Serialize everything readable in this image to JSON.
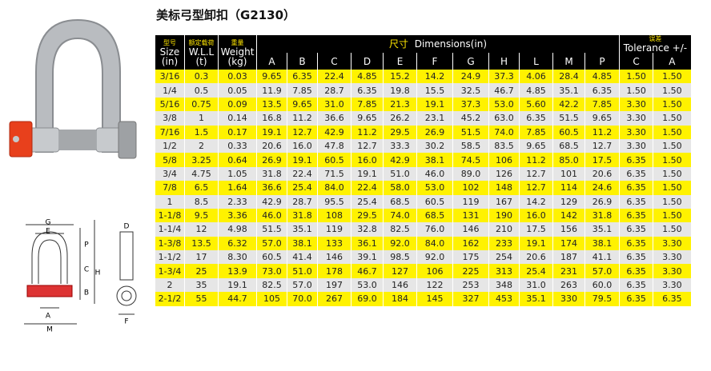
{
  "title": "美标弓型卸扣（G2130）",
  "table": {
    "headers": {
      "size": [
        "型号",
        "Size",
        "(in)"
      ],
      "wll": [
        "额定载荷",
        "W.L.L",
        "(t)"
      ],
      "weight": [
        "重量",
        "Weight",
        "(kg)"
      ],
      "dimensions": [
        "尺寸",
        "Dimensions(in)"
      ],
      "tolerance": [
        "误差",
        "Tolerance +/-"
      ]
    },
    "columns": [
      "A",
      "B",
      "C",
      "D",
      "E",
      "F",
      "G",
      "H",
      "L",
      "M",
      "P",
      "C",
      "A"
    ],
    "rows": [
      [
        "3/16",
        "0.3",
        "0.03",
        "9.65",
        "6.35",
        "22.4",
        "4.85",
        "15.2",
        "14.2",
        "24.9",
        "37.3",
        "4.06",
        "28.4",
        "4.85",
        "1.50",
        "1.50"
      ],
      [
        "1/4",
        "0.5",
        "0.05",
        "11.9",
        "7.85",
        "28.7",
        "6.35",
        "19.8",
        "15.5",
        "32.5",
        "46.7",
        "4.85",
        "35.1",
        "6.35",
        "1.50",
        "1.50"
      ],
      [
        "5/16",
        "0.75",
        "0.09",
        "13.5",
        "9.65",
        "31.0",
        "7.85",
        "21.3",
        "19.1",
        "37.3",
        "53.0",
        "5.60",
        "42.2",
        "7.85",
        "3.30",
        "1.50"
      ],
      [
        "3/8",
        "1",
        "0.14",
        "16.8",
        "11.2",
        "36.6",
        "9.65",
        "26.2",
        "23.1",
        "45.2",
        "63.0",
        "6.35",
        "51.5",
        "9.65",
        "3.30",
        "1.50"
      ],
      [
        "7/16",
        "1.5",
        "0.17",
        "19.1",
        "12.7",
        "42.9",
        "11.2",
        "29.5",
        "26.9",
        "51.5",
        "74.0",
        "7.85",
        "60.5",
        "11.2",
        "3.30",
        "1.50"
      ],
      [
        "1/2",
        "2",
        "0.33",
        "20.6",
        "16.0",
        "47.8",
        "12.7",
        "33.3",
        "30.2",
        "58.5",
        "83.5",
        "9.65",
        "68.5",
        "12.7",
        "3.30",
        "1.50"
      ],
      [
        "5/8",
        "3.25",
        "0.64",
        "26.9",
        "19.1",
        "60.5",
        "16.0",
        "42.9",
        "38.1",
        "74.5",
        "106",
        "11.2",
        "85.0",
        "17.5",
        "6.35",
        "1.50"
      ],
      [
        "3/4",
        "4.75",
        "1.05",
        "31.8",
        "22.4",
        "71.5",
        "19.1",
        "51.0",
        "46.0",
        "89.0",
        "126",
        "12.7",
        "101",
        "20.6",
        "6.35",
        "1.50"
      ],
      [
        "7/8",
        "6.5",
        "1.64",
        "36.6",
        "25.4",
        "84.0",
        "22.4",
        "58.0",
        "53.0",
        "102",
        "148",
        "12.7",
        "114",
        "24.6",
        "6.35",
        "1.50"
      ],
      [
        "1",
        "8.5",
        "2.33",
        "42.9",
        "28.7",
        "95.5",
        "25.4",
        "68.5",
        "60.5",
        "119",
        "167",
        "14.2",
        "129",
        "26.9",
        "6.35",
        "1.50"
      ],
      [
        "1-1/8",
        "9.5",
        "3.36",
        "46.0",
        "31.8",
        "108",
        "29.5",
        "74.0",
        "68.5",
        "131",
        "190",
        "16.0",
        "142",
        "31.8",
        "6.35",
        "1.50"
      ],
      [
        "1-1/4",
        "12",
        "4.98",
        "51.5",
        "35.1",
        "119",
        "32.8",
        "82.5",
        "76.0",
        "146",
        "210",
        "17.5",
        "156",
        "35.1",
        "6.35",
        "1.50"
      ],
      [
        "1-3/8",
        "13.5",
        "6.32",
        "57.0",
        "38.1",
        "133",
        "36.1",
        "92.0",
        "84.0",
        "162",
        "233",
        "19.1",
        "174",
        "38.1",
        "6.35",
        "3.30"
      ],
      [
        "1-1/2",
        "17",
        "8.30",
        "60.5",
        "41.4",
        "146",
        "39.1",
        "98.5",
        "92.0",
        "175",
        "254",
        "20.6",
        "187",
        "41.1",
        "6.35",
        "3.30"
      ],
      [
        "1-3/4",
        "25",
        "13.9",
        "73.0",
        "51.0",
        "178",
        "46.7",
        "127",
        "106",
        "225",
        "313",
        "25.4",
        "231",
        "57.0",
        "6.35",
        "3.30"
      ],
      [
        "2",
        "35",
        "19.1",
        "82.5",
        "57.0",
        "197",
        "53.0",
        "146",
        "122",
        "253",
        "348",
        "31.0",
        "263",
        "60.0",
        "6.35",
        "3.30"
      ],
      [
        "2-1/2",
        "55",
        "44.7",
        "105",
        "70.0",
        "267",
        "69.0",
        "184",
        "145",
        "327",
        "453",
        "35.1",
        "330",
        "79.5",
        "6.35",
        "6.35"
      ]
    ]
  },
  "diagram": {
    "front_labels": [
      "G",
      "E",
      "P",
      "C",
      "H",
      "B",
      "A",
      "M"
    ],
    "side_labels": [
      "D",
      "F"
    ]
  }
}
